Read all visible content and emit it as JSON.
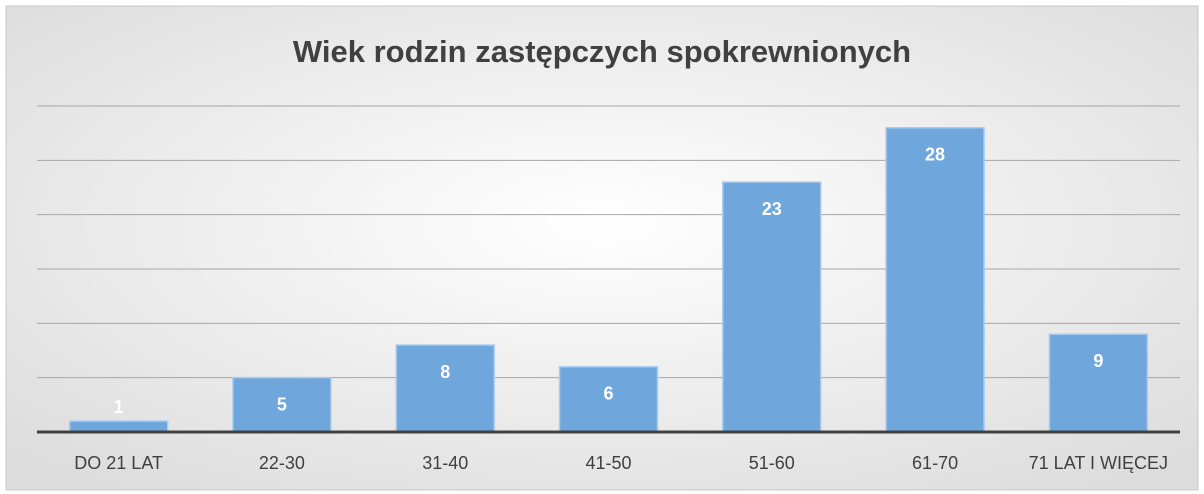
{
  "chart_data": {
    "type": "bar",
    "title": "Wiek rodzin zastępczych spokrewnionych",
    "categories": [
      "DO 21 LAT",
      "22-30",
      "31-40",
      "41-50",
      "51-60",
      "61-70",
      "71 LAT I WIĘCEJ"
    ],
    "values": [
      1,
      5,
      8,
      6,
      23,
      28,
      9
    ],
    "color": "#6fa6dc",
    "ylim": [
      0,
      30
    ],
    "yticks": [
      0,
      5,
      10,
      15,
      20,
      25,
      30
    ],
    "grid": true
  }
}
